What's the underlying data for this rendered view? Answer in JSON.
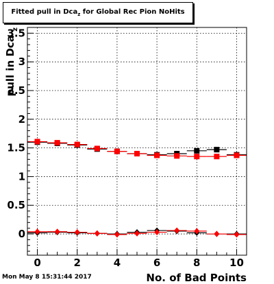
{
  "title": {
    "prefix": "Fitted pull in Dca",
    "subscript": "z",
    "suffix": " for Global Rec Pion NoHits"
  },
  "timestamp": "Mon May  8 15:31:44 2017",
  "chart_data": {
    "type": "scatter",
    "xlabel": "No. of Bad Points",
    "ylabel": "pull in Dca",
    "ylabel_subscript": "z",
    "xlim": [
      -0.5,
      10.5
    ],
    "ylim": [
      -0.37,
      3.6
    ],
    "xticks": [
      0,
      2,
      4,
      6,
      8,
      10
    ],
    "yticks": [
      0,
      0.5,
      1,
      1.5,
      2,
      2.5,
      3,
      3.5
    ],
    "ytick_labels": [
      "0",
      "0.5",
      "1",
      "1.5",
      "2",
      "2.5",
      "3",
      "3.5"
    ],
    "grid": true,
    "x": [
      0,
      1,
      2,
      3,
      4,
      5,
      6,
      7,
      8,
      9,
      10
    ],
    "series": [
      {
        "marker": "square",
        "color": "#000000",
        "values": [
          1.6,
          1.58,
          1.55,
          1.48,
          1.44,
          1.4,
          1.38,
          1.4,
          1.45,
          1.47,
          1.38
        ]
      },
      {
        "marker": "square",
        "color": "#ff0000",
        "values": [
          1.61,
          1.59,
          1.56,
          1.49,
          1.44,
          1.4,
          1.37,
          1.36,
          1.35,
          1.35,
          1.37
        ]
      },
      {
        "marker": "diamond",
        "color": "#000000",
        "values": [
          0.02,
          0.03,
          0.02,
          0.01,
          0.0,
          0.03,
          0.06,
          0.05,
          0.02,
          0.0,
          0.0
        ]
      },
      {
        "marker": "diamond",
        "color": "#ff0000",
        "values": [
          0.04,
          0.04,
          0.03,
          0.01,
          -0.01,
          0.01,
          0.03,
          0.06,
          0.05,
          0.0,
          -0.01
        ]
      }
    ]
  }
}
